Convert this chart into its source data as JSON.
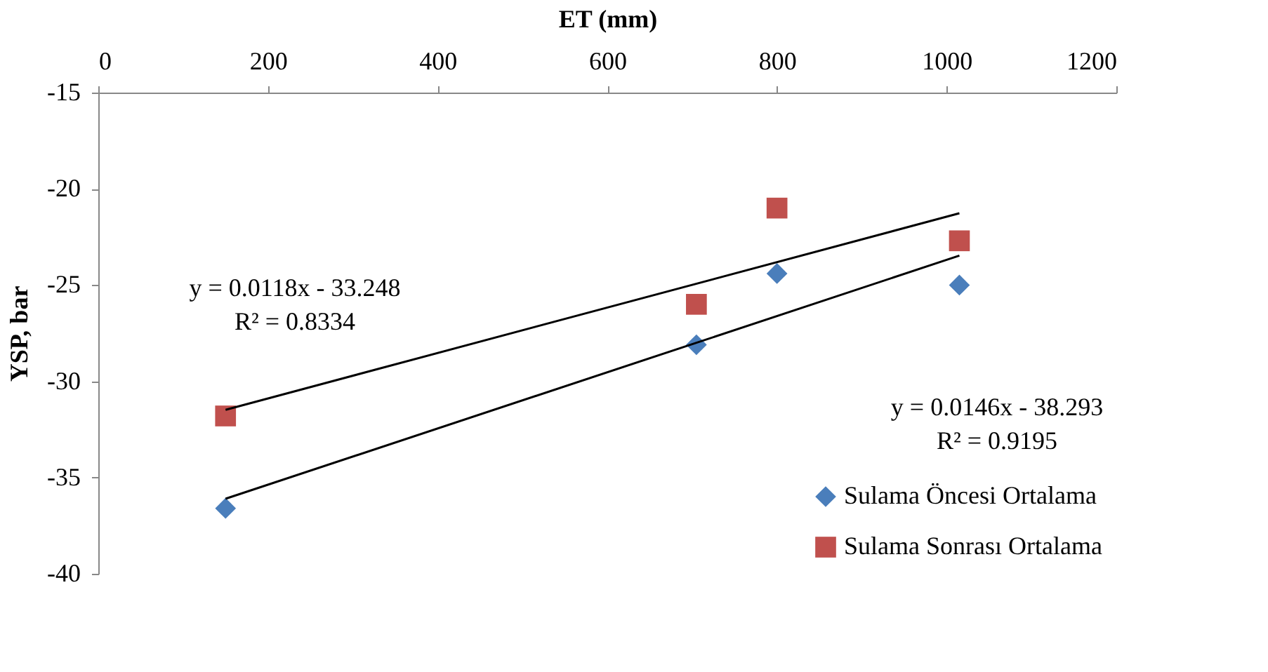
{
  "chart_data": {
    "type": "scatter",
    "xlabel": "ET (mm)",
    "ylabel": "YSP, bar",
    "xlim": [
      0,
      1200
    ],
    "xticks": [
      0,
      200,
      400,
      600,
      800,
      1000,
      1200
    ],
    "ylim": [
      -40,
      -15
    ],
    "yticks": [
      -15,
      -20,
      -25,
      -30,
      -35,
      -40
    ],
    "grid": false,
    "legend": "bottom right",
    "series": [
      {
        "name": "Sulama Öncesi Ortalama",
        "color": "#4a7ebb",
        "marker": "diamond",
        "x": [
          150,
          705,
          800,
          1015
        ],
        "values": [
          -36.6,
          -28.1,
          -24.4,
          -25.0
        ]
      },
      {
        "name": "Sulama Sonrası Ortalama",
        "color": "#c0504d",
        "marker": "square",
        "x": [
          150,
          705,
          800,
          1015
        ],
        "values": [
          -31.8,
          -26.0,
          -21.0,
          -22.7
        ]
      },
      {
        "type": "line",
        "color": "#000000",
        "x": [
          150,
          1015
        ],
        "values": [
          -31.48,
          -21.27
        ]
      },
      {
        "type": "line",
        "color": "#000000",
        "x": [
          150,
          1015
        ],
        "values": [
          -36.1,
          -23.47
        ]
      }
    ],
    "annotations": [
      "y = 0.0118x - 33.248\nR² = 0.8334",
      "y = 0.0146x - 38.293\nR² = 0.9195"
    ]
  }
}
